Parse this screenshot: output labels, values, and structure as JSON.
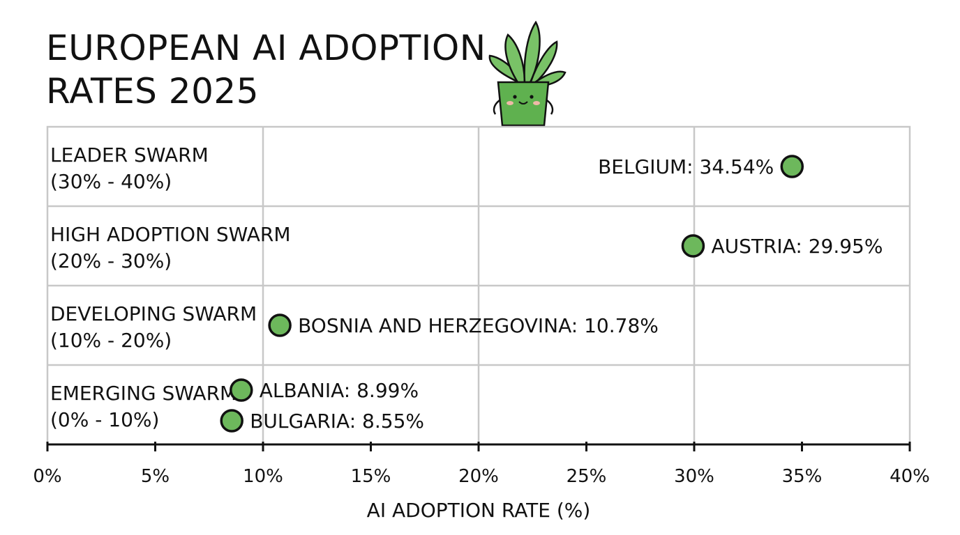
{
  "chart_data": {
    "type": "scatter",
    "title": "EUROPEAN AI ADOPTION RATES 2025",
    "xlabel": "AI ADOPTION RATE (%)",
    "ylabel": "",
    "xlim": [
      0,
      40
    ],
    "x_ticks": [
      0,
      5,
      10,
      15,
      20,
      25,
      30,
      35,
      40
    ],
    "x_tick_labels": [
      "0%",
      "5%",
      "10%",
      "15%",
      "20%",
      "25%",
      "30%",
      "35%",
      "40%"
    ],
    "grid": true,
    "bands": [
      {
        "name": "LEADER SWARM",
        "range": "(30% - 40%)"
      },
      {
        "name": "HIGH ADOPTION SWARM",
        "range": "(20% - 30%)"
      },
      {
        "name": "DEVELOPING SWARM",
        "range": "(10% - 20%)"
      },
      {
        "name": "EMERGING SWARM",
        "range": "(0% - 10%)"
      }
    ],
    "points": [
      {
        "country": "BELGIUM",
        "value": 34.54,
        "label": "BELGIUM: 34.54%",
        "band": 0,
        "label_side": "left"
      },
      {
        "country": "AUSTRIA",
        "value": 29.95,
        "label": "AUSTRIA: 29.95%",
        "band": 1,
        "label_side": "right"
      },
      {
        "country": "BOSNIA AND HERZEGOVINA",
        "value": 10.78,
        "label": "BOSNIA AND HERZEGOVINA: 10.78%",
        "band": 2,
        "label_side": "right"
      },
      {
        "country": "ALBANIA",
        "value": 8.99,
        "label": "ALBANIA: 8.99%",
        "band": 3,
        "label_side": "right"
      },
      {
        "country": "BULGARIA",
        "value": 8.55,
        "label": "BULGARIA: 8.55%",
        "band": 3,
        "label_side": "right"
      }
    ],
    "colors": {
      "point_fill": "#6db85c",
      "point_stroke": "#111111",
      "grid": "#c8c8c8",
      "axis": "#111111"
    }
  },
  "mascot": {
    "icon": "potted-plant-mascot-icon",
    "colors": {
      "pot": "#5fb14f",
      "leaf": "#79c267",
      "blush": "#f0b9a8"
    }
  }
}
